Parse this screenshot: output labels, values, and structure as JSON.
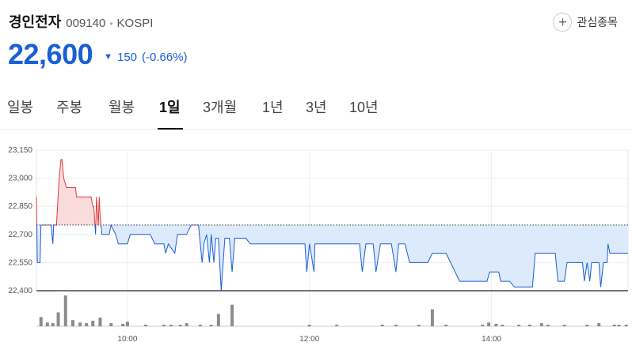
{
  "stock": {
    "name": "경인전자",
    "code": "009140",
    "market": "KOSPI",
    "price": "22,600",
    "change": "150",
    "change_pct": "(-0.66%)",
    "direction": "down",
    "watch_label": "관심종목",
    "colors": {
      "down": "#1a5fd8",
      "up": "#e03c3c"
    }
  },
  "tabs": [
    "일봉",
    "주봉",
    "월봉",
    "1일",
    "3개월",
    "1년",
    "3년",
    "10년"
  ],
  "active_tab": "1일",
  "chart_data": {
    "type": "line",
    "reference_price": 22750,
    "ylim": [
      22400,
      23150
    ],
    "y_ticks": [
      "23,150",
      "23,000",
      "22,850",
      "22,700",
      "22,550",
      "22,400"
    ],
    "x_ticks": [
      "10:00",
      "12:00",
      "14:00"
    ],
    "x_tick_times": [
      10,
      12,
      14
    ],
    "xlim": [
      9.0,
      15.5
    ],
    "series": [
      {
        "points": [
          [
            9.0,
            22900
          ],
          [
            9.01,
            22550
          ],
          [
            9.04,
            22550
          ],
          [
            9.05,
            22750
          ],
          [
            9.16,
            22750
          ],
          [
            9.18,
            22650
          ],
          [
            9.19,
            22750
          ],
          [
            9.22,
            22750
          ],
          [
            9.25,
            23000
          ],
          [
            9.27,
            23100
          ],
          [
            9.28,
            23100
          ],
          [
            9.3,
            23000
          ],
          [
            9.33,
            22950
          ],
          [
            9.43,
            22950
          ],
          [
            9.44,
            22900
          ],
          [
            9.52,
            22900
          ],
          [
            9.6,
            22900
          ],
          [
            9.62,
            22850
          ],
          [
            9.63,
            22850
          ],
          [
            9.65,
            22700
          ],
          [
            9.66,
            22900
          ],
          [
            9.68,
            22750
          ],
          [
            9.69,
            22900
          ],
          [
            9.7,
            22800
          ],
          [
            9.72,
            22700
          ],
          [
            9.8,
            22700
          ],
          [
            9.82,
            22750
          ],
          [
            9.87,
            22700
          ],
          [
            9.9,
            22650
          ],
          [
            10.0,
            22650
          ],
          [
            10.03,
            22700
          ],
          [
            10.25,
            22700
          ],
          [
            10.3,
            22650
          ],
          [
            10.4,
            22650
          ],
          [
            10.42,
            22600
          ],
          [
            10.45,
            22650
          ],
          [
            10.52,
            22600
          ],
          [
            10.55,
            22700
          ],
          [
            10.65,
            22700
          ],
          [
            10.7,
            22750
          ],
          [
            10.78,
            22750
          ],
          [
            10.8,
            22650
          ],
          [
            10.82,
            22550
          ],
          [
            10.84,
            22650
          ],
          [
            10.87,
            22700
          ],
          [
            10.9,
            22550
          ],
          [
            10.92,
            22700
          ],
          [
            10.95,
            22550
          ],
          [
            10.97,
            22680
          ],
          [
            11.0,
            22680
          ],
          [
            11.03,
            22400
          ],
          [
            11.07,
            22680
          ],
          [
            11.12,
            22680
          ],
          [
            11.15,
            22500
          ],
          [
            11.18,
            22680
          ],
          [
            11.3,
            22680
          ],
          [
            11.35,
            22650
          ],
          [
            11.95,
            22650
          ],
          [
            11.97,
            22500
          ],
          [
            12.0,
            22650
          ],
          [
            12.05,
            22500
          ],
          [
            12.06,
            22650
          ],
          [
            12.1,
            22650
          ],
          [
            12.25,
            22650
          ],
          [
            12.4,
            22650
          ],
          [
            12.55,
            22650
          ],
          [
            12.58,
            22500
          ],
          [
            12.62,
            22650
          ],
          [
            12.7,
            22650
          ],
          [
            12.73,
            22500
          ],
          [
            12.78,
            22650
          ],
          [
            12.9,
            22650
          ],
          [
            12.95,
            22500
          ],
          [
            12.98,
            22650
          ],
          [
            13.05,
            22650
          ],
          [
            13.1,
            22550
          ],
          [
            13.3,
            22550
          ],
          [
            13.35,
            22600
          ],
          [
            13.5,
            22600
          ],
          [
            13.65,
            22450
          ],
          [
            13.95,
            22450
          ],
          [
            13.98,
            22500
          ],
          [
            14.08,
            22500
          ],
          [
            14.1,
            22450
          ],
          [
            14.2,
            22450
          ],
          [
            14.25,
            22420
          ],
          [
            14.45,
            22420
          ],
          [
            14.48,
            22600
          ],
          [
            14.7,
            22600
          ],
          [
            14.73,
            22450
          ],
          [
            14.8,
            22450
          ],
          [
            14.83,
            22550
          ],
          [
            15.0,
            22550
          ],
          [
            15.02,
            22450
          ],
          [
            15.05,
            22550
          ],
          [
            15.08,
            22450
          ],
          [
            15.1,
            22550
          ],
          [
            15.18,
            22550
          ],
          [
            15.2,
            22420
          ],
          [
            15.23,
            22550
          ],
          [
            15.27,
            22550
          ],
          [
            15.28,
            22650
          ],
          [
            15.3,
            22600
          ],
          [
            15.5,
            22600
          ]
        ]
      }
    ],
    "volume": [
      [
        9.05,
        0.3
      ],
      [
        9.12,
        0.12
      ],
      [
        9.18,
        0.1
      ],
      [
        9.24,
        0.45
      ],
      [
        9.32,
        1.0
      ],
      [
        9.4,
        0.2
      ],
      [
        9.48,
        0.12
      ],
      [
        9.55,
        0.1
      ],
      [
        9.62,
        0.18
      ],
      [
        9.7,
        0.28
      ],
      [
        9.82,
        0.1
      ],
      [
        9.95,
        0.08
      ],
      [
        10.0,
        0.15
      ],
      [
        10.2,
        0.05
      ],
      [
        10.4,
        0.05
      ],
      [
        10.48,
        0.05
      ],
      [
        10.58,
        0.05
      ],
      [
        10.65,
        0.1
      ],
      [
        10.8,
        0.05
      ],
      [
        10.92,
        0.05
      ],
      [
        11.0,
        0.4
      ],
      [
        11.15,
        0.7
      ],
      [
        12.0,
        0.05
      ],
      [
        12.3,
        0.05
      ],
      [
        12.8,
        0.05
      ],
      [
        12.95,
        0.05
      ],
      [
        13.2,
        0.05
      ],
      [
        13.35,
        0.55
      ],
      [
        13.5,
        0.05
      ],
      [
        13.9,
        0.05
      ],
      [
        13.97,
        0.12
      ],
      [
        14.05,
        0.08
      ],
      [
        14.12,
        0.05
      ],
      [
        14.3,
        0.05
      ],
      [
        14.42,
        0.05
      ],
      [
        14.55,
        0.1
      ],
      [
        14.62,
        0.05
      ],
      [
        14.8,
        0.05
      ],
      [
        15.05,
        0.05
      ],
      [
        15.18,
        0.1
      ],
      [
        15.35,
        0.05
      ],
      [
        15.4,
        0.05
      ],
      [
        15.48,
        0.05
      ]
    ]
  }
}
